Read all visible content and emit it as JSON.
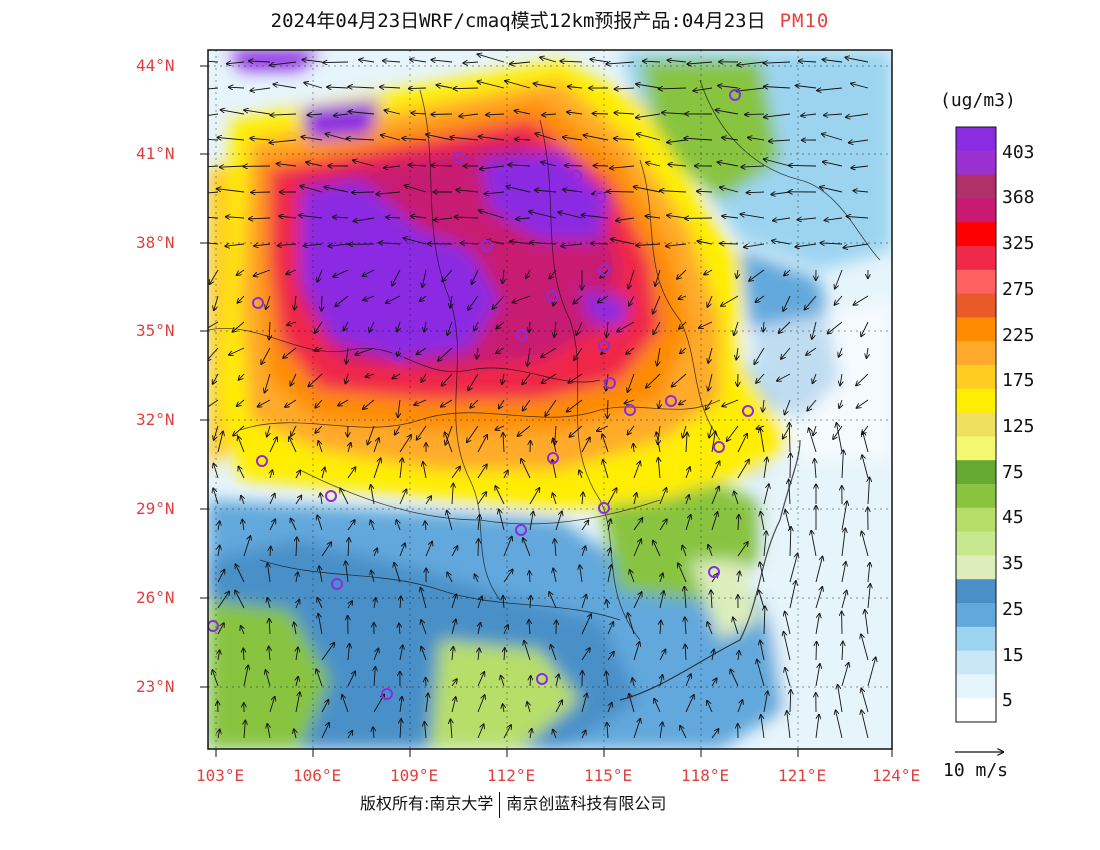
{
  "header": {
    "title": "2024年04月23日WRF/cmaq模式12km预报产品:04月23日",
    "variable": "PM10"
  },
  "map": {
    "lat_labels": [
      "44°N",
      "41°N",
      "38°N",
      "35°N",
      "32°N",
      "29°N",
      "26°N",
      "23°N"
    ],
    "lon_labels": [
      "103°E",
      "106°E",
      "109°E",
      "112°E",
      "115°E",
      "118°E",
      "121°E",
      "124°E"
    ],
    "extent": {
      "lon": [
        102.8,
        124
      ],
      "lat": [
        21,
        44.5
      ]
    },
    "colors": {
      "label": "#e04040"
    }
  },
  "colorbar": {
    "unit": "(ug/m3)",
    "labels": [
      "403",
      "368",
      "325",
      "275",
      "225",
      "175",
      "125",
      "75",
      "45",
      "35",
      "25",
      "15",
      "5"
    ],
    "colors": [
      "#8b2be2",
      "#9b30d0",
      "#b0306a",
      "#c81a72",
      "#ff0000",
      "#f0284a",
      "#ff6060",
      "#e85a2a",
      "#ff8c00",
      "#ffaa2a",
      "#ffcc22",
      "#ffee00",
      "#f0e060",
      "#f4f870",
      "#66aa33",
      "#88c440",
      "#b8de6a",
      "#c8e890",
      "#ddeebb",
      "#4a90c8",
      "#62a8dc",
      "#9cd4f0",
      "#c8e8f6",
      "#e6f4fb",
      "#ffffff"
    ]
  },
  "wind_reference": {
    "label": "10 m/s"
  },
  "footer": {
    "left": "版权所有:南京大学",
    "right": "南京创蓝科技有限公司"
  }
}
